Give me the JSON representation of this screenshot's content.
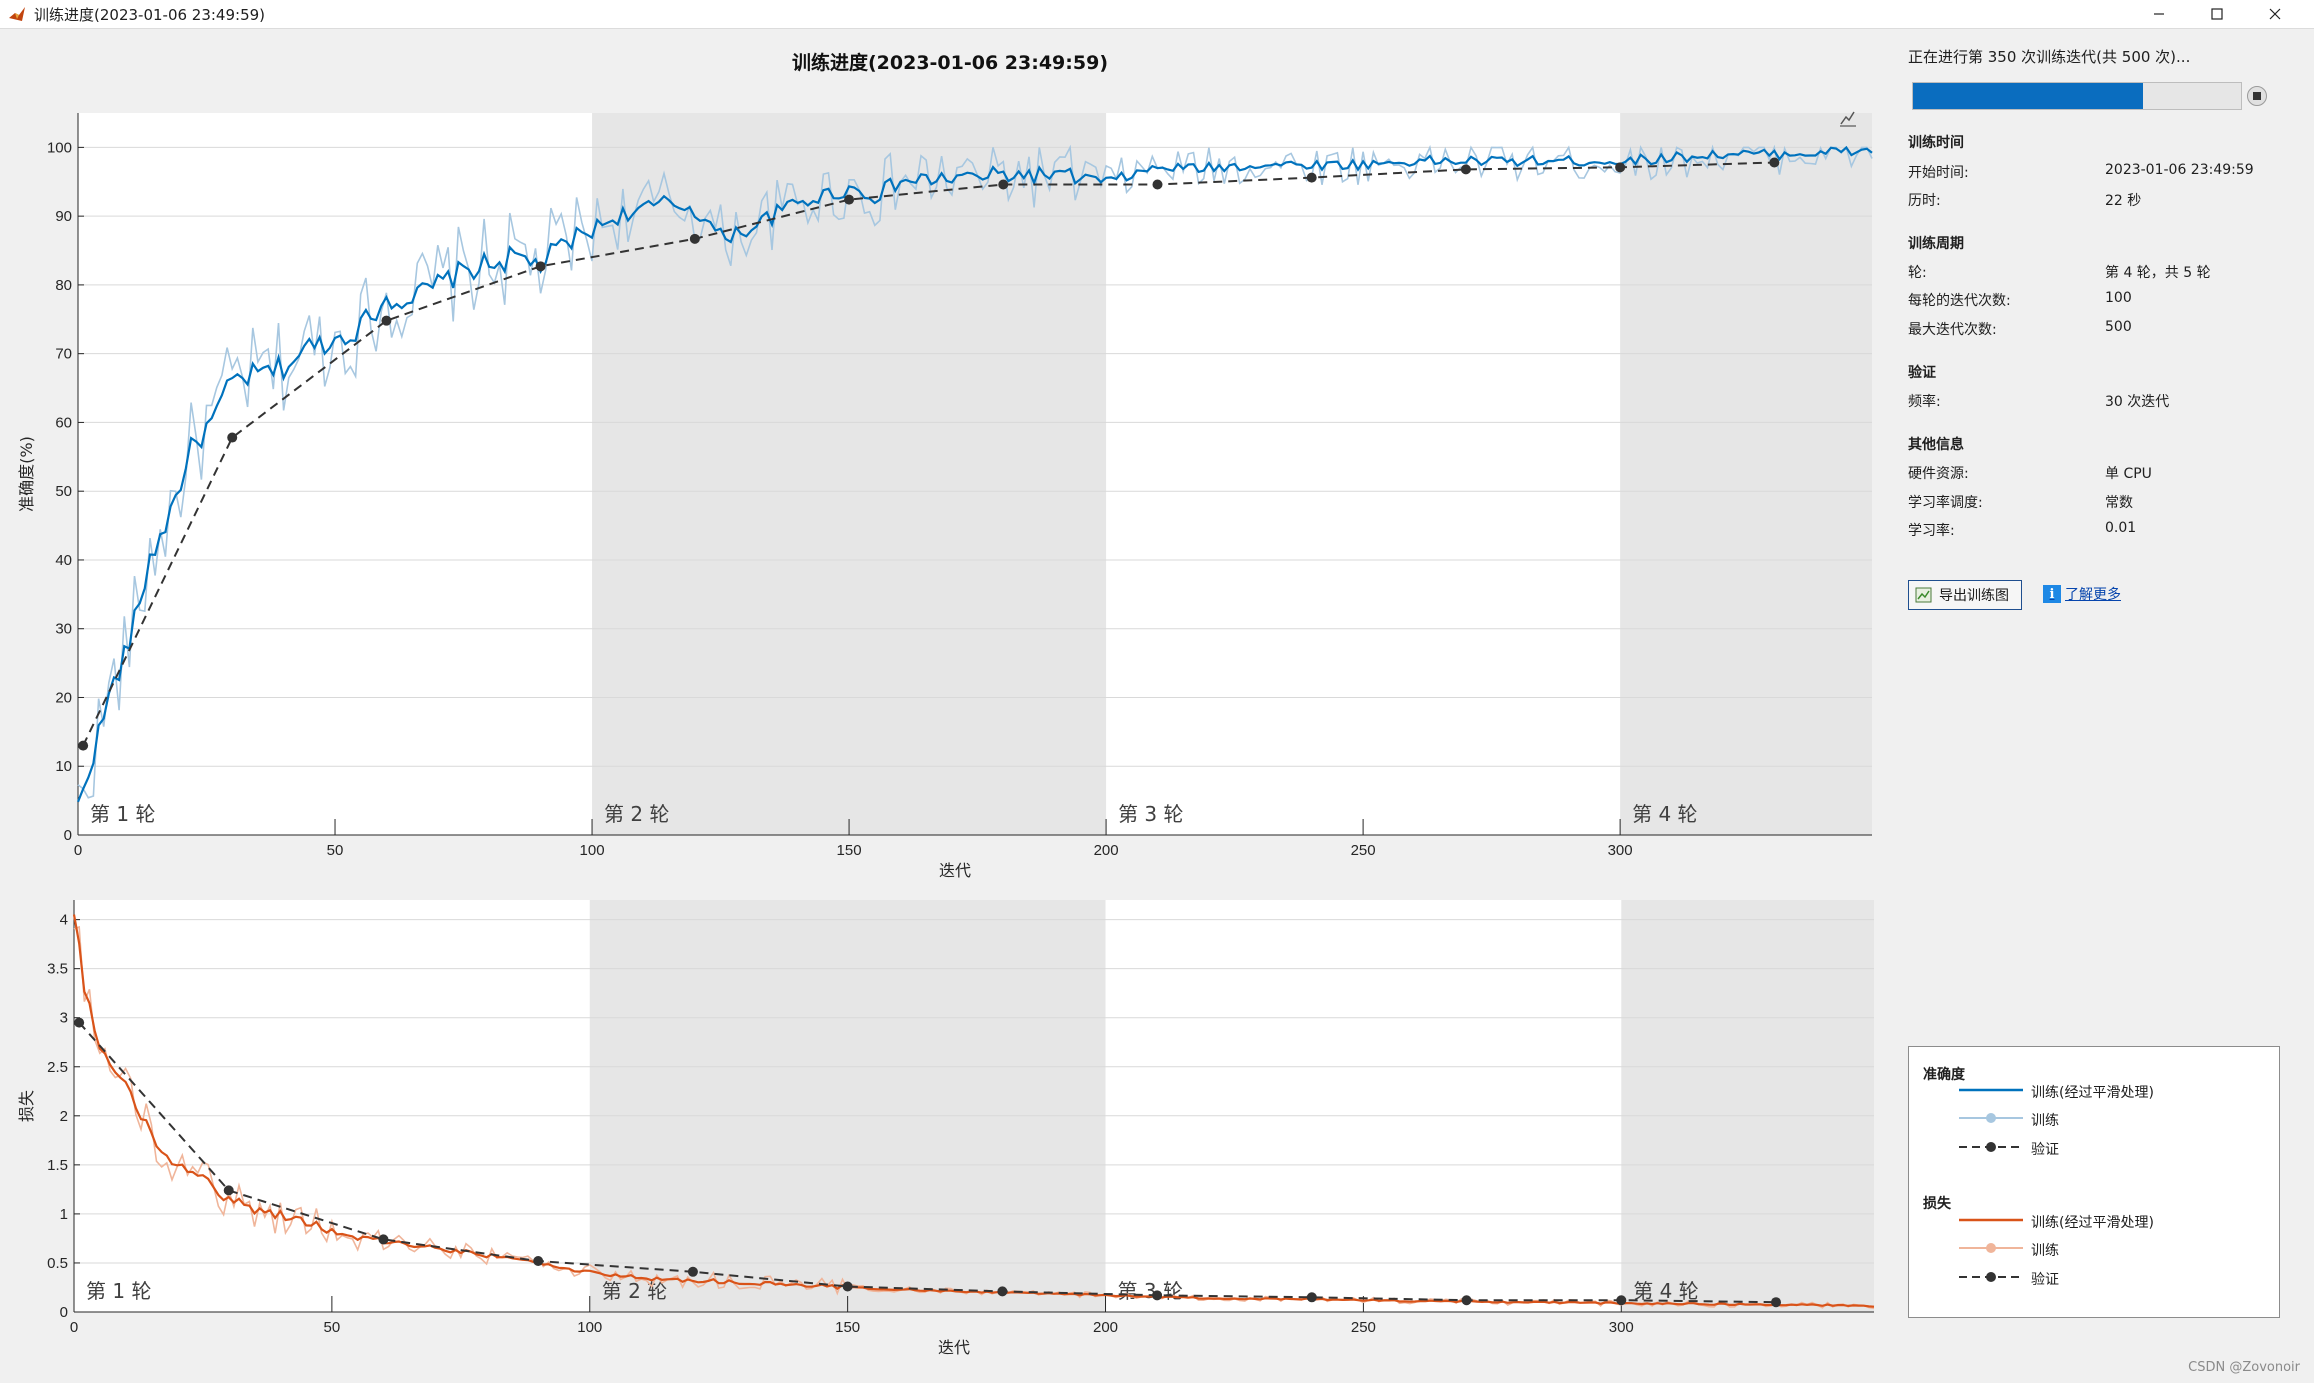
{
  "window": {
    "title": "训练进度(2023-01-06 23:49:59)"
  },
  "figure_title": "训练进度(2023-01-06 23:49:59)",
  "status": {
    "text": "正在进行第 350 次训练迭代(共 500 次)...",
    "progress_fraction": 0.7
  },
  "sections": {
    "training_time": {
      "header": "训练时间",
      "start_label": "开始时间:",
      "start_value": "2023-01-06 23:49:59",
      "elapsed_label": "历时:",
      "elapsed_value": "22 秒"
    },
    "training_cycle": {
      "header": "训练周期",
      "epoch_label": "轮:",
      "epoch_value": "第 4 轮，共 5 轮",
      "iter_per_epoch_label": "每轮的迭代次数:",
      "iter_per_epoch_value": "100",
      "max_iter_label": "最大迭代次数:",
      "max_iter_value": "500"
    },
    "validation": {
      "header": "验证",
      "freq_label": "频率:",
      "freq_value": "30 次迭代"
    },
    "other": {
      "header": "其他信息",
      "hardware_label": "硬件资源:",
      "hardware_value": "单 CPU",
      "lr_schedule_label": "学习率调度:",
      "lr_schedule_value": "常数",
      "lr_label": "学习率:",
      "lr_value": "0.01"
    }
  },
  "buttons": {
    "export_label": "导出训练图",
    "learn_more_label": "了解更多"
  },
  "legend": {
    "accuracy_header": "准确度",
    "loss_header": "损失",
    "smoothed": "训练(经过平滑处理)",
    "train": "训练",
    "validation": "验证"
  },
  "watermark": "CSDN @Zovonoir",
  "colors": {
    "acc_smoothed": "#0072bd",
    "acc_train": "#a7c7e0",
    "loss_smoothed": "#d95319",
    "loss_train": "#f0b59a",
    "validation": "#333333",
    "epoch_shade": "#e6e6e6",
    "progress": "#0a6dbf"
  },
  "chart_data": [
    {
      "type": "line",
      "title": "",
      "xlabel": "迭代",
      "ylabel": "准确度(%)",
      "xlim": [
        0,
        349
      ],
      "ylim": [
        0,
        105
      ],
      "xticks": [
        0,
        50,
        100,
        150,
        200,
        250,
        300
      ],
      "yticks": [
        0,
        10,
        20,
        30,
        40,
        50,
        60,
        70,
        80,
        90,
        100
      ],
      "epoch_labels": [
        "第 1 轮",
        "第 2 轮",
        "第 3 轮",
        "第 4 轮"
      ],
      "epoch_starts": [
        0,
        100,
        200,
        300
      ],
      "smoothed_anchors": {
        "x": [
          0,
          3,
          6,
          10,
          14,
          18,
          22,
          26,
          30,
          35,
          40,
          45,
          50,
          55,
          60,
          65,
          70,
          75,
          80,
          85,
          90,
          95,
          100,
          105,
          110,
          115,
          120,
          125,
          130,
          135,
          140,
          145,
          150,
          155,
          160,
          170,
          180,
          190,
          200,
          210,
          220,
          230,
          240,
          250,
          260,
          270,
          280,
          290,
          300,
          310,
          320,
          330,
          340,
          349
        ],
        "y": [
          4,
          12,
          20,
          28,
          40,
          47,
          56,
          60,
          66,
          67,
          68,
          71,
          72,
          74,
          78,
          78,
          80,
          82,
          83,
          84,
          83,
          86,
          88,
          90,
          91,
          92,
          91,
          87,
          88,
          90,
          92,
          93,
          94,
          93,
          95,
          95.5,
          96,
          96,
          95,
          97,
          97,
          97.5,
          97.5,
          97.5,
          98,
          98,
          98,
          98,
          98,
          98.5,
          99,
          99,
          99.3,
          99.5
        ]
      },
      "validation": {
        "x": [
          1,
          30,
          60,
          90,
          120,
          150,
          180,
          210,
          240,
          270,
          300,
          330
        ],
        "y": [
          13,
          57.8,
          74.8,
          82.7,
          86.7,
          92.4,
          94.6,
          94.6,
          95.6,
          96.8,
          97.1,
          97.8
        ]
      }
    },
    {
      "type": "line",
      "title": "",
      "xlabel": "迭代",
      "ylabel": "损失",
      "xlim": [
        0,
        349
      ],
      "ylim": [
        0,
        4.2
      ],
      "xticks": [
        0,
        50,
        100,
        150,
        200,
        250,
        300
      ],
      "yticks": [
        0,
        0.5,
        1,
        1.5,
        2,
        2.5,
        3,
        3.5,
        4
      ],
      "epoch_labels": [
        "第 1 轮",
        "第 2 轮",
        "第 3 轮",
        "第 4 轮"
      ],
      "epoch_starts": [
        0,
        100,
        200,
        300
      ],
      "smoothed_anchors": {
        "x": [
          0,
          2,
          5,
          10,
          15,
          20,
          25,
          30,
          35,
          40,
          50,
          60,
          70,
          80,
          90,
          100,
          110,
          120,
          130,
          140,
          150,
          160,
          170,
          180,
          200,
          220,
          240,
          260,
          280,
          300,
          320,
          340,
          349
        ],
        "y": [
          4.1,
          3.3,
          2.7,
          2.3,
          1.8,
          1.5,
          1.35,
          1.15,
          1.05,
          1.0,
          0.82,
          0.72,
          0.65,
          0.58,
          0.5,
          0.4,
          0.35,
          0.32,
          0.3,
          0.27,
          0.25,
          0.23,
          0.21,
          0.2,
          0.17,
          0.14,
          0.13,
          0.11,
          0.1,
          0.09,
          0.08,
          0.07,
          0.06
        ]
      },
      "validation": {
        "x": [
          1,
          30,
          60,
          90,
          120,
          150,
          180,
          210,
          240,
          270,
          300,
          330
        ],
        "y": [
          2.95,
          1.24,
          0.74,
          0.52,
          0.41,
          0.26,
          0.21,
          0.17,
          0.15,
          0.12,
          0.12,
          0.1
        ]
      }
    }
  ]
}
